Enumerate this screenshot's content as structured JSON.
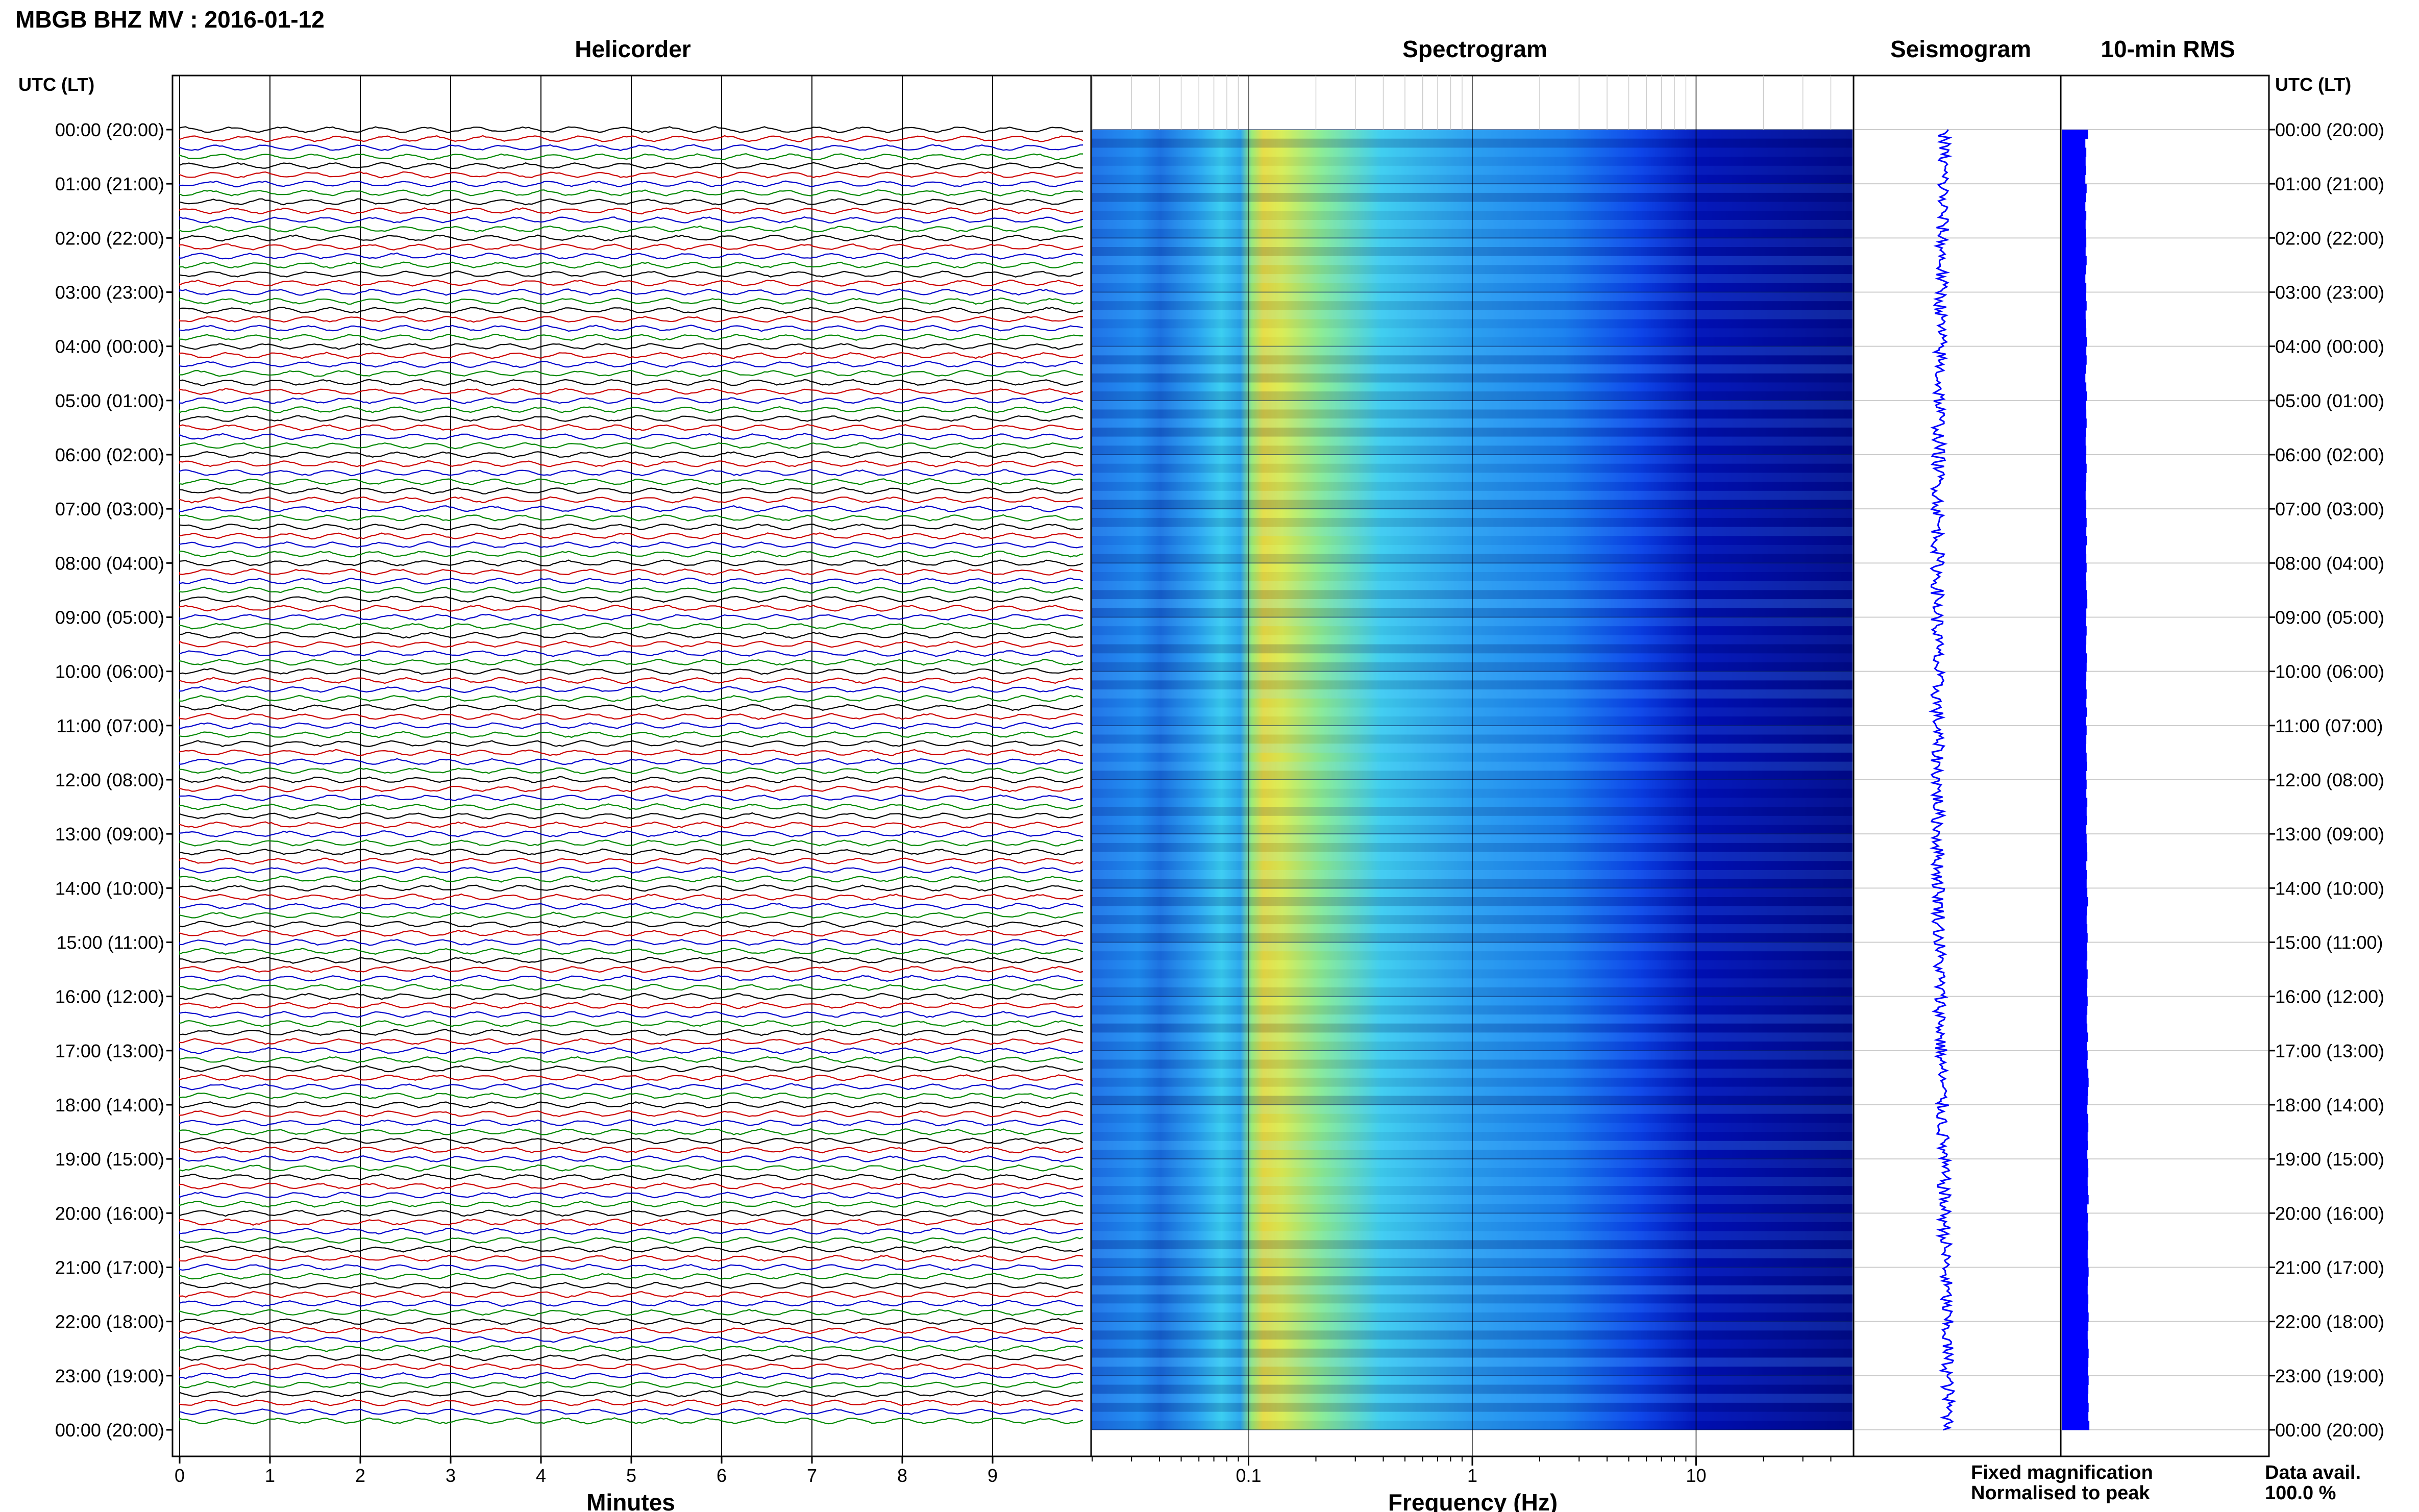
{
  "title": "MBGB BHZ MV : 2016-01-12",
  "panels": {
    "helicorder": "Helicorder",
    "spectrogram": "Spectrogram",
    "seismogram": "Seismogram",
    "rms": "10-min RMS"
  },
  "time_axis_label": "UTC (LT)",
  "time_labels": [
    "00:00 (20:00)",
    "01:00 (21:00)",
    "02:00 (22:00)",
    "03:00 (23:00)",
    "04:00 (00:00)",
    "05:00 (01:00)",
    "06:00 (02:00)",
    "07:00 (03:00)",
    "08:00 (04:00)",
    "09:00 (05:00)",
    "10:00 (06:00)",
    "11:00 (07:00)",
    "12:00 (08:00)",
    "13:00 (09:00)",
    "14:00 (10:00)",
    "15:00 (11:00)",
    "16:00 (12:00)",
    "17:00 (13:00)",
    "18:00 (14:00)",
    "19:00 (15:00)",
    "20:00 (16:00)",
    "21:00 (17:00)",
    "22:00 (18:00)",
    "23:00 (19:00)",
    "00:00 (20:00)"
  ],
  "legend": {
    "fixed": "Fixed magnification",
    "normalised": "Normalised to peak",
    "fixed_color": "#0000ff",
    "normalised_color": "#ff0000"
  },
  "data_avail": {
    "label": "Data avail.",
    "value": "100.0 %"
  },
  "chart_data": [
    {
      "type": "line",
      "name": "helicorder",
      "xlabel": "Minutes",
      "xticks": [
        "0",
        "1",
        "2",
        "3",
        "4",
        "5",
        "6",
        "7",
        "8",
        "9"
      ],
      "xlim": [
        0,
        10
      ],
      "traces_count": 144,
      "trace_colors": [
        "#000000",
        "#cc0000",
        "#0000cc",
        "#008800"
      ]
    },
    {
      "type": "heatmap",
      "name": "spectrogram",
      "xlabel": "Frequency (Hz)",
      "xticks": [
        "0.1",
        "1",
        "10"
      ],
      "xlim": [
        0.02,
        50
      ],
      "xscale": "log",
      "colormap": "jet"
    },
    {
      "type": "line",
      "name": "seismogram"
    },
    {
      "type": "bar",
      "name": "10-min RMS",
      "color": "#0000ff",
      "values": [
        0.78,
        0.7,
        0.73,
        0.71,
        0.72,
        0.7,
        0.74,
        0.72,
        0.7,
        0.73,
        0.71,
        0.72,
        0.73,
        0.71,
        0.74,
        0.72,
        0.7,
        0.73,
        0.72,
        0.74,
        0.71,
        0.72,
        0.73,
        0.75,
        0.73,
        0.74,
        0.72,
        0.7,
        0.73,
        0.75,
        0.72,
        0.73,
        0.74,
        0.72,
        0.71,
        0.73,
        0.72,
        0.74,
        0.73,
        0.72,
        0.71,
        0.73,
        0.72,
        0.74,
        0.73,
        0.75,
        0.72,
        0.73,
        0.74,
        0.72,
        0.73,
        0.75,
        0.76,
        0.73,
        0.72,
        0.74,
        0.73,
        0.72,
        0.75,
        0.74,
        0.73,
        0.72,
        0.74,
        0.73,
        0.75,
        0.72,
        0.74,
        0.73,
        0.72,
        0.74,
        0.75,
        0.73,
        0.74,
        0.73,
        0.76,
        0.74,
        0.75,
        0.73,
        0.74,
        0.75,
        0.76,
        0.73,
        0.75,
        0.74,
        0.76,
        0.78,
        0.75,
        0.74,
        0.76,
        0.77,
        0.75,
        0.76,
        0.74,
        0.77,
        0.76,
        0.75,
        0.77,
        0.76,
        0.74,
        0.76,
        0.78,
        0.75,
        0.77,
        0.76,
        0.79,
        0.8,
        0.78,
        0.77,
        0.76,
        0.78,
        0.79,
        0.77,
        0.78,
        0.76,
        0.78,
        0.79,
        0.77,
        0.78,
        0.8,
        0.76,
        0.78,
        0.77,
        0.79,
        0.78,
        0.77,
        0.79,
        0.8,
        0.78,
        0.77,
        0.79,
        0.78,
        0.8,
        0.79,
        0.77,
        0.78,
        0.8,
        0.79,
        0.78,
        0.8,
        0.79,
        0.78,
        0.8,
        0.79,
        0.82
      ]
    }
  ]
}
